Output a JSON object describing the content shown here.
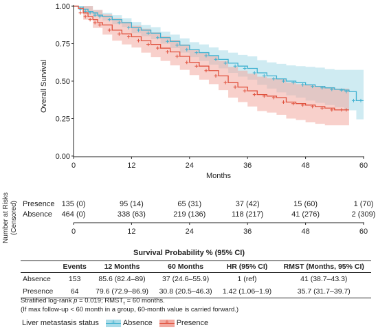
{
  "chart_data": {
    "type": "line",
    "title": "",
    "xlabel": "Months",
    "ylabel": "Overall Survival",
    "xlim": [
      0,
      60
    ],
    "ylim": [
      0,
      1
    ],
    "x_ticks": [
      "0",
      "12",
      "24",
      "36",
      "48",
      "60"
    ],
    "y_ticks": [
      "0.00",
      "0.25",
      "0.50",
      "0.75",
      "1.00"
    ],
    "grid": false,
    "series": [
      {
        "name": "Absence",
        "color": "#3fb1d0",
        "band_color": "#a8dbe8",
        "points": [
          [
            0,
            1.0
          ],
          [
            1,
            0.995
          ],
          [
            2,
            0.98
          ],
          [
            3,
            0.965
          ],
          [
            4,
            0.955
          ],
          [
            5,
            0.94
          ],
          [
            6,
            0.93
          ],
          [
            8,
            0.91
          ],
          [
            10,
            0.89
          ],
          [
            12,
            0.856
          ],
          [
            14,
            0.84
          ],
          [
            16,
            0.82
          ],
          [
            18,
            0.79
          ],
          [
            20,
            0.765
          ],
          [
            22,
            0.74
          ],
          [
            24,
            0.71
          ],
          [
            26,
            0.69
          ],
          [
            28,
            0.67
          ],
          [
            30,
            0.645
          ],
          [
            32,
            0.62
          ],
          [
            34,
            0.6
          ],
          [
            36,
            0.585
          ],
          [
            38,
            0.555
          ],
          [
            40,
            0.535
          ],
          [
            42,
            0.515
          ],
          [
            44,
            0.5
          ],
          [
            46,
            0.49
          ],
          [
            48,
            0.475
          ],
          [
            50,
            0.465
          ],
          [
            52,
            0.455
          ],
          [
            54,
            0.445
          ],
          [
            56,
            0.44
          ],
          [
            57,
            0.43
          ],
          [
            58.5,
            0.37
          ],
          [
            60,
            0.37
          ]
        ],
        "ci_upper": [
          [
            0,
            1.0
          ],
          [
            2,
            1.0
          ],
          [
            4,
            0.975
          ],
          [
            6,
            0.955
          ],
          [
            8,
            0.94
          ],
          [
            10,
            0.92
          ],
          [
            12,
            0.894
          ],
          [
            14,
            0.875
          ],
          [
            16,
            0.86
          ],
          [
            18,
            0.83
          ],
          [
            20,
            0.81
          ],
          [
            22,
            0.785
          ],
          [
            24,
            0.76
          ],
          [
            26,
            0.745
          ],
          [
            28,
            0.725
          ],
          [
            30,
            0.705
          ],
          [
            32,
            0.69
          ],
          [
            34,
            0.675
          ],
          [
            36,
            0.665
          ],
          [
            38,
            0.64
          ],
          [
            40,
            0.625
          ],
          [
            42,
            0.615
          ],
          [
            44,
            0.605
          ],
          [
            46,
            0.6
          ],
          [
            48,
            0.595
          ],
          [
            50,
            0.59
          ],
          [
            52,
            0.58
          ],
          [
            54,
            0.575
          ],
          [
            56,
            0.575
          ],
          [
            58.5,
            0.575
          ],
          [
            60,
            0.575
          ]
        ],
        "ci_lower": [
          [
            0,
            1.0
          ],
          [
            2,
            0.96
          ],
          [
            4,
            0.93
          ],
          [
            6,
            0.905
          ],
          [
            8,
            0.88
          ],
          [
            10,
            0.86
          ],
          [
            12,
            0.82
          ],
          [
            14,
            0.8
          ],
          [
            16,
            0.78
          ],
          [
            18,
            0.75
          ],
          [
            20,
            0.72
          ],
          [
            22,
            0.69
          ],
          [
            24,
            0.66
          ],
          [
            26,
            0.635
          ],
          [
            28,
            0.61
          ],
          [
            30,
            0.585
          ],
          [
            32,
            0.555
          ],
          [
            34,
            0.53
          ],
          [
            36,
            0.51
          ],
          [
            38,
            0.475
          ],
          [
            40,
            0.45
          ],
          [
            42,
            0.425
          ],
          [
            44,
            0.405
          ],
          [
            46,
            0.39
          ],
          [
            48,
            0.37
          ],
          [
            50,
            0.355
          ],
          [
            52,
            0.34
          ],
          [
            54,
            0.325
          ],
          [
            56,
            0.305
          ],
          [
            58.5,
            0.245
          ],
          [
            60,
            0.245
          ]
        ]
      },
      {
        "name": "Presence",
        "color": "#e0503c",
        "band_color": "#f2a9a0",
        "points": [
          [
            0,
            1.0
          ],
          [
            1,
            0.985
          ],
          [
            2,
            0.955
          ],
          [
            3,
            0.93
          ],
          [
            4,
            0.91
          ],
          [
            5,
            0.89
          ],
          [
            6,
            0.875
          ],
          [
            8,
            0.84
          ],
          [
            10,
            0.815
          ],
          [
            12,
            0.796
          ],
          [
            14,
            0.77
          ],
          [
            16,
            0.745
          ],
          [
            18,
            0.72
          ],
          [
            20,
            0.695
          ],
          [
            22,
            0.665
          ],
          [
            24,
            0.625
          ],
          [
            26,
            0.6
          ],
          [
            28,
            0.57
          ],
          [
            30,
            0.535
          ],
          [
            32,
            0.49
          ],
          [
            34,
            0.46
          ],
          [
            36,
            0.435
          ],
          [
            38,
            0.41
          ],
          [
            40,
            0.4
          ],
          [
            42,
            0.39
          ],
          [
            44,
            0.36
          ],
          [
            46,
            0.35
          ],
          [
            48,
            0.34
          ],
          [
            50,
            0.33
          ],
          [
            52,
            0.32
          ],
          [
            54,
            0.308
          ],
          [
            56,
            0.308
          ],
          [
            57,
            0.308
          ]
        ],
        "ci_upper": [
          [
            0,
            1.0
          ],
          [
            2,
            1.0
          ],
          [
            4,
            0.975
          ],
          [
            6,
            0.945
          ],
          [
            8,
            0.92
          ],
          [
            10,
            0.895
          ],
          [
            12,
            0.869
          ],
          [
            14,
            0.85
          ],
          [
            16,
            0.825
          ],
          [
            18,
            0.8
          ],
          [
            20,
            0.775
          ],
          [
            22,
            0.745
          ],
          [
            24,
            0.71
          ],
          [
            26,
            0.69
          ],
          [
            28,
            0.665
          ],
          [
            30,
            0.635
          ],
          [
            32,
            0.595
          ],
          [
            34,
            0.57
          ],
          [
            36,
            0.55
          ],
          [
            38,
            0.53
          ],
          [
            40,
            0.52
          ],
          [
            42,
            0.515
          ],
          [
            44,
            0.49
          ],
          [
            46,
            0.48
          ],
          [
            48,
            0.475
          ],
          [
            50,
            0.465
          ],
          [
            52,
            0.46
          ],
          [
            54,
            0.45
          ],
          [
            56,
            0.45
          ],
          [
            57,
            0.45
          ]
        ],
        "ci_lower": [
          [
            0,
            1.0
          ],
          [
            2,
            0.91
          ],
          [
            4,
            0.855
          ],
          [
            6,
            0.81
          ],
          [
            8,
            0.77
          ],
          [
            10,
            0.745
          ],
          [
            12,
            0.724
          ],
          [
            14,
            0.69
          ],
          [
            16,
            0.66
          ],
          [
            18,
            0.635
          ],
          [
            20,
            0.605
          ],
          [
            22,
            0.575
          ],
          [
            24,
            0.54
          ],
          [
            26,
            0.51
          ],
          [
            28,
            0.48
          ],
          [
            30,
            0.44
          ],
          [
            32,
            0.39
          ],
          [
            34,
            0.36
          ],
          [
            36,
            0.33
          ],
          [
            38,
            0.3
          ],
          [
            40,
            0.29
          ],
          [
            42,
            0.275
          ],
          [
            44,
            0.25
          ],
          [
            46,
            0.24
          ],
          [
            48,
            0.225
          ],
          [
            50,
            0.215
          ],
          [
            52,
            0.205
          ],
          [
            54,
            0.205
          ],
          [
            56,
            0.205
          ],
          [
            57,
            0.205
          ]
        ]
      }
    ]
  },
  "risk_table": {
    "ylabel_line1": "Number at Risks",
    "ylabel_line2": "(Censored)",
    "ticks": [
      "0",
      "12",
      "24",
      "36",
      "48",
      "60"
    ],
    "rows": [
      {
        "group": "Presence",
        "values": [
          "135 (0)",
          "95 (14)",
          "65 (31)",
          "37 (42)",
          "15 (60)",
          "1 (70)"
        ]
      },
      {
        "group": "Absence",
        "values": [
          "464 (0)",
          "338 (63)",
          "219 (136)",
          "118 (217)",
          "41 (276)",
          "2 (309)"
        ]
      }
    ]
  },
  "summary_table": {
    "title": "Survival Probability % (95% CI)",
    "headers": [
      "",
      "Events",
      "12 Months",
      "60 Months",
      "HR (95% CI)",
      "RMST (Months, 95% CI)"
    ],
    "rows": [
      [
        "Absence",
        "153",
        "85.6 (82.4–89)",
        "37 (24.6–55.9)",
        "1 (ref)",
        "41 (38.7–43.3)"
      ],
      [
        "Presence",
        "64",
        "79.6 (72.9–86.9)",
        "30.8 (20.5–46.3)",
        "1.42 (1.06–1.9)",
        "35.7 (31.7–39.7)"
      ]
    ]
  },
  "footnote": {
    "logrank_prefix": "Stratified log-rank ",
    "p_symbol": "p",
    "logrank_value": " = 0.019; RMST",
    "tau": "τ",
    "rmst_value": " = 60 months.",
    "line2": "(If max follow-up < 60 month in a group, 60-month value is carried forward.)"
  },
  "legend": {
    "title": "Liver metastasis status",
    "items": [
      {
        "label": "Absence",
        "color": "#3fb1d0",
        "fill": "#a8dbe8"
      },
      {
        "label": "Presence",
        "color": "#e0503c",
        "fill": "#f2a9a0"
      }
    ]
  }
}
